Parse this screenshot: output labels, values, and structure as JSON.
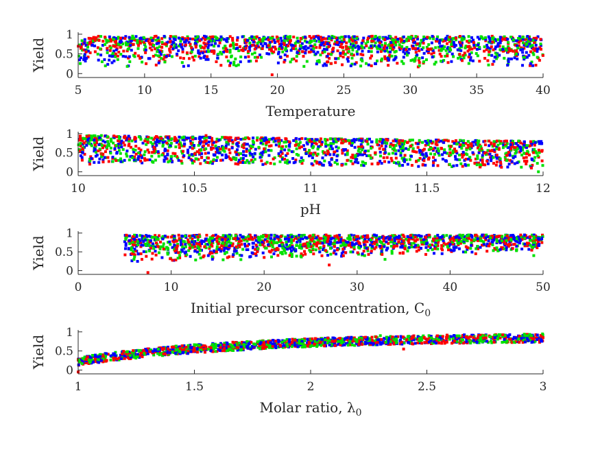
{
  "chart_data": [
    {
      "type": "scatter",
      "xlabel": "Temperature",
      "ylabel": "Yield",
      "xlim": [
        5,
        40
      ],
      "ylim": [
        -0.1,
        1.05
      ],
      "xticks": [
        "5",
        "10",
        "15",
        "20",
        "25",
        "30",
        "35",
        "40"
      ],
      "yticks": [
        "0",
        "0.5",
        "1"
      ],
      "grid": false,
      "series": [
        {
          "color": "#ff0000",
          "values": [
            [
              5.6,
              0.55
            ],
            [
              8.2,
              0.9
            ],
            [
              12.7,
              0.4
            ],
            [
              15.4,
              0.3
            ],
            [
              19.6,
              -0.03
            ],
            [
              23.8,
              0.3
            ],
            [
              28.1,
              0.7
            ],
            [
              31.6,
              0.5
            ],
            [
              36.2,
              0.8
            ],
            [
              39.5,
              0.9
            ]
          ]
        },
        {
          "color": "#00e000",
          "values": [
            [
              6.8,
              0.3
            ],
            [
              9.1,
              0.95
            ],
            [
              14.2,
              0.7
            ],
            [
              16.9,
              0.2
            ],
            [
              21.5,
              0.9
            ],
            [
              25.6,
              0.5
            ],
            [
              30.2,
              0.35
            ],
            [
              33.9,
              0.85
            ],
            [
              38.1,
              0.65
            ]
          ]
        },
        {
          "color": "#0000ff",
          "values": [
            [
              5.2,
              0.4
            ],
            [
              10.1,
              0.6
            ],
            [
              13.3,
              0.2
            ],
            [
              18.2,
              0.8
            ],
            [
              22.9,
              0.5
            ],
            [
              27.4,
              0.25
            ],
            [
              32.7,
              0.9
            ],
            [
              37.4,
              0.3
            ]
          ]
        }
      ]
    },
    {
      "type": "scatter",
      "xlabel": "pH",
      "ylabel": "Yield",
      "xlim": [
        10,
        12
      ],
      "ylim": [
        -0.1,
        1.05
      ],
      "xticks": [
        "10",
        "10.5",
        "11",
        "11.5",
        "12"
      ],
      "yticks": [
        "0",
        "0.5",
        "1"
      ],
      "grid": false,
      "series": [
        {
          "color": "#ff0000",
          "values": [
            [
              10.05,
              0.2
            ],
            [
              10.2,
              0.7
            ],
            [
              10.55,
              0.95
            ],
            [
              10.8,
              0.6
            ],
            [
              11.15,
              0.8
            ],
            [
              11.6,
              0.5
            ],
            [
              11.95,
              0.1
            ]
          ]
        },
        {
          "color": "#00e000",
          "values": [
            [
              10.1,
              0.95
            ],
            [
              10.4,
              0.4
            ],
            [
              10.9,
              0.3
            ],
            [
              11.3,
              0.85
            ],
            [
              11.8,
              0.6
            ],
            [
              11.98,
              0.0
            ]
          ]
        },
        {
          "color": "#0000ff",
          "values": [
            [
              10.02,
              0.5
            ],
            [
              10.35,
              0.8
            ],
            [
              10.7,
              0.85
            ],
            [
              11.1,
              0.45
            ],
            [
              11.5,
              0.75
            ],
            [
              11.9,
              0.65
            ]
          ]
        }
      ]
    },
    {
      "type": "scatter",
      "xlabel": "Initial precursor concentration, C",
      "xlabel_sub": "0",
      "ylabel": "Yield",
      "xlim": [
        0,
        50
      ],
      "ylim": [
        -0.1,
        1.05
      ],
      "xticks": [
        "0",
        "10",
        "20",
        "30",
        "40",
        "50"
      ],
      "yticks": [
        "0",
        "0.5",
        "1"
      ],
      "grid": false,
      "series": [
        {
          "color": "#ff0000",
          "values": [
            [
              7.5,
              -0.05
            ],
            [
              12.0,
              0.6
            ],
            [
              20.0,
              0.35
            ],
            [
              27.0,
              0.15
            ],
            [
              35.0,
              0.8
            ],
            [
              45.0,
              0.9
            ]
          ]
        },
        {
          "color": "#00e000",
          "values": [
            [
              6.0,
              0.3
            ],
            [
              16.0,
              0.75
            ],
            [
              25.0,
              0.5
            ],
            [
              33.0,
              0.3
            ],
            [
              42.0,
              0.95
            ],
            [
              49.0,
              0.4
            ]
          ]
        },
        {
          "color": "#0000ff",
          "values": [
            [
              5.5,
              0.8
            ],
            [
              14.0,
              0.4
            ],
            [
              23.0,
              0.9
            ],
            [
              31.0,
              0.6
            ],
            [
              40.0,
              0.7
            ],
            [
              48.0,
              0.95
            ]
          ]
        }
      ]
    },
    {
      "type": "scatter",
      "xlabel": "Molar ratio, λ",
      "xlabel_sub": "0",
      "ylabel": "Yield",
      "xlim": [
        1,
        3
      ],
      "ylim": [
        -0.1,
        1.05
      ],
      "xticks": [
        "1",
        "1.5",
        "2",
        "2.5",
        "3"
      ],
      "yticks": [
        "0",
        "0.5",
        "1"
      ],
      "grid": false,
      "series": [
        {
          "color": "#ff0000",
          "values": [
            [
              1.0,
              -0.05
            ],
            [
              1.2,
              0.3
            ],
            [
              1.5,
              0.5
            ],
            [
              1.8,
              0.65
            ],
            [
              2.1,
              0.75
            ],
            [
              2.4,
              0.55
            ],
            [
              2.7,
              0.85
            ],
            [
              3.0,
              0.85
            ]
          ]
        },
        {
          "color": "#00e000",
          "values": [
            [
              1.05,
              0.2
            ],
            [
              1.35,
              0.4
            ],
            [
              1.65,
              0.55
            ],
            [
              1.95,
              0.7
            ],
            [
              2.3,
              0.9
            ],
            [
              2.65,
              0.8
            ],
            [
              2.95,
              0.9
            ]
          ]
        },
        {
          "color": "#0000ff",
          "values": [
            [
              1.1,
              0.25
            ],
            [
              1.45,
              0.45
            ],
            [
              1.75,
              0.6
            ],
            [
              2.05,
              0.8
            ],
            [
              2.45,
              0.7
            ],
            [
              2.85,
              0.9
            ]
          ]
        }
      ]
    }
  ]
}
